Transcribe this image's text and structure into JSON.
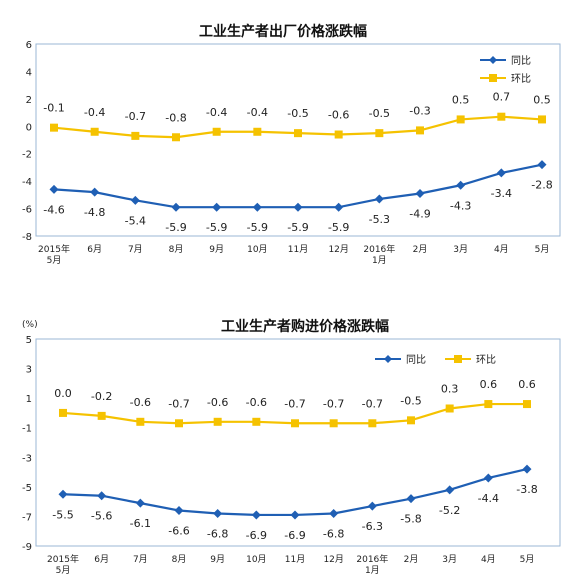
{
  "colors": {
    "yoy": "#1f5fb4",
    "mom": "#f5c200",
    "frame": "#9bb7d4"
  },
  "chart_data": [
    {
      "type": "line",
      "title": "工业生产者出厂价格涨跌幅",
      "unit": "",
      "categories": [
        [
          "2015年",
          "5月"
        ],
        [
          "6月"
        ],
        [
          "7月"
        ],
        [
          "8月"
        ],
        [
          "9月"
        ],
        [
          "10月"
        ],
        [
          "11月"
        ],
        [
          "12月"
        ],
        [
          "2016年",
          "1月"
        ],
        [
          "2月"
        ],
        [
          "3月"
        ],
        [
          "4月"
        ],
        [
          "5月"
        ]
      ],
      "ylim": [
        -8,
        6
      ],
      "yticks": [
        6,
        4,
        2,
        0,
        -2,
        -4,
        -6,
        -8
      ],
      "legend_position": "top-right",
      "series": [
        {
          "name": "同比",
          "color": "#1f5fb4",
          "marker": "diamond",
          "values": [
            -4.6,
            -4.8,
            -5.4,
            -5.9,
            -5.9,
            -5.9,
            -5.9,
            -5.9,
            -5.3,
            -4.9,
            -4.3,
            -3.4,
            -2.8
          ],
          "labels": [
            "-4.6",
            "-4.8",
            "-5.4",
            "-5.9",
            "-5.9",
            "-5.9",
            "-5.9",
            "-5.9",
            "-5.3",
            "-4.9",
            "-4.3",
            "-3.4",
            "-2.8"
          ]
        },
        {
          "name": "环比",
          "color": "#f5c200",
          "marker": "square",
          "values": [
            -0.1,
            -0.4,
            -0.7,
            -0.8,
            -0.4,
            -0.4,
            -0.5,
            -0.6,
            -0.5,
            -0.3,
            0.5,
            0.7,
            0.5
          ],
          "labels": [
            "-0.1",
            "-0.4",
            "-0.7",
            "-0.8",
            "-0.4",
            "-0.4",
            "-0.5",
            "-0.6",
            "-0.5",
            "-0.3",
            "0.5",
            "0.7",
            "0.5"
          ]
        }
      ]
    },
    {
      "type": "line",
      "title": "工业生产者购进价格涨跌幅",
      "unit": "(%)",
      "categories": [
        [
          "2015年",
          "5月"
        ],
        [
          "6月"
        ],
        [
          "7月"
        ],
        [
          "8月"
        ],
        [
          "9月"
        ],
        [
          "10月"
        ],
        [
          "11月"
        ],
        [
          "12月"
        ],
        [
          "2016年",
          "1月"
        ],
        [
          "2月"
        ],
        [
          "3月"
        ],
        [
          "4月"
        ],
        [
          "5月"
        ]
      ],
      "ylim": [
        -9,
        5
      ],
      "yticks": [
        5,
        3,
        1,
        -1,
        -3,
        -5,
        -7,
        -9
      ],
      "legend_position": "top-right",
      "series": [
        {
          "name": "同比",
          "color": "#1f5fb4",
          "marker": "diamond",
          "values": [
            -5.5,
            -5.6,
            -6.1,
            -6.6,
            -6.8,
            -6.9,
            -6.9,
            -6.8,
            -6.3,
            -5.8,
            -5.2,
            -4.4,
            -3.8
          ],
          "labels": [
            "-5.5",
            "-5.6",
            "-6.1",
            "-6.6",
            "-6.8",
            "-6.9",
            "-6.9",
            "-6.8",
            "-6.3",
            "-5.8",
            "-5.2",
            "-4.4",
            "-3.8"
          ]
        },
        {
          "name": "环比",
          "color": "#f5c200",
          "marker": "square",
          "values": [
            0.0,
            -0.2,
            -0.6,
            -0.7,
            -0.6,
            -0.6,
            -0.7,
            -0.7,
            -0.7,
            -0.5,
            0.3,
            0.6,
            0.6
          ],
          "labels": [
            "0.0",
            "-0.2",
            "-0.6",
            "-0.7",
            "-0.6",
            "-0.6",
            "-0.7",
            "-0.7",
            "-0.7",
            "-0.5",
            "0.3",
            "0.6",
            "0.6"
          ]
        }
      ]
    }
  ]
}
